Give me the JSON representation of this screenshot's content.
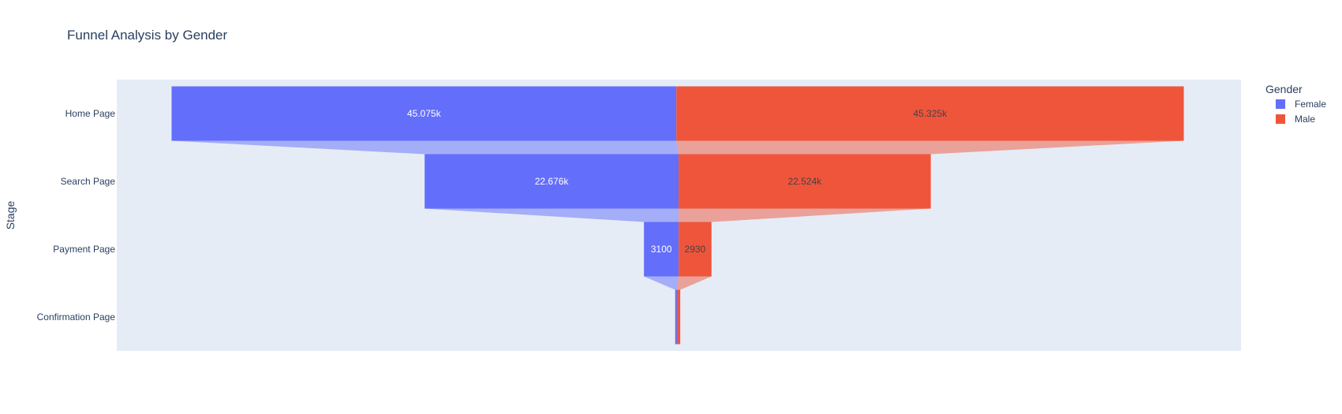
{
  "chart_data": {
    "type": "funnel",
    "title": "Funnel Analysis by Gender",
    "ylabel": "Stage",
    "xlabel": "",
    "categories": [
      "Home Page",
      "Search Page",
      "Payment Page",
      "Confirmation Page"
    ],
    "series": [
      {
        "name": "Female",
        "color": "#636efa",
        "values": [
          45075,
          22676,
          3100,
          150
        ],
        "text": [
          "45.075k",
          "22.676k",
          "3100",
          ""
        ]
      },
      {
        "name": "Male",
        "color": "#ef553b",
        "values": [
          45325,
          22524,
          2930,
          302
        ],
        "text": [
          "45.325k",
          "22.524k",
          "2930",
          ""
        ]
      }
    ],
    "legend": {
      "title": "Gender",
      "position": "top-right"
    },
    "plot_background": "#e5ecf6",
    "grid": false
  }
}
